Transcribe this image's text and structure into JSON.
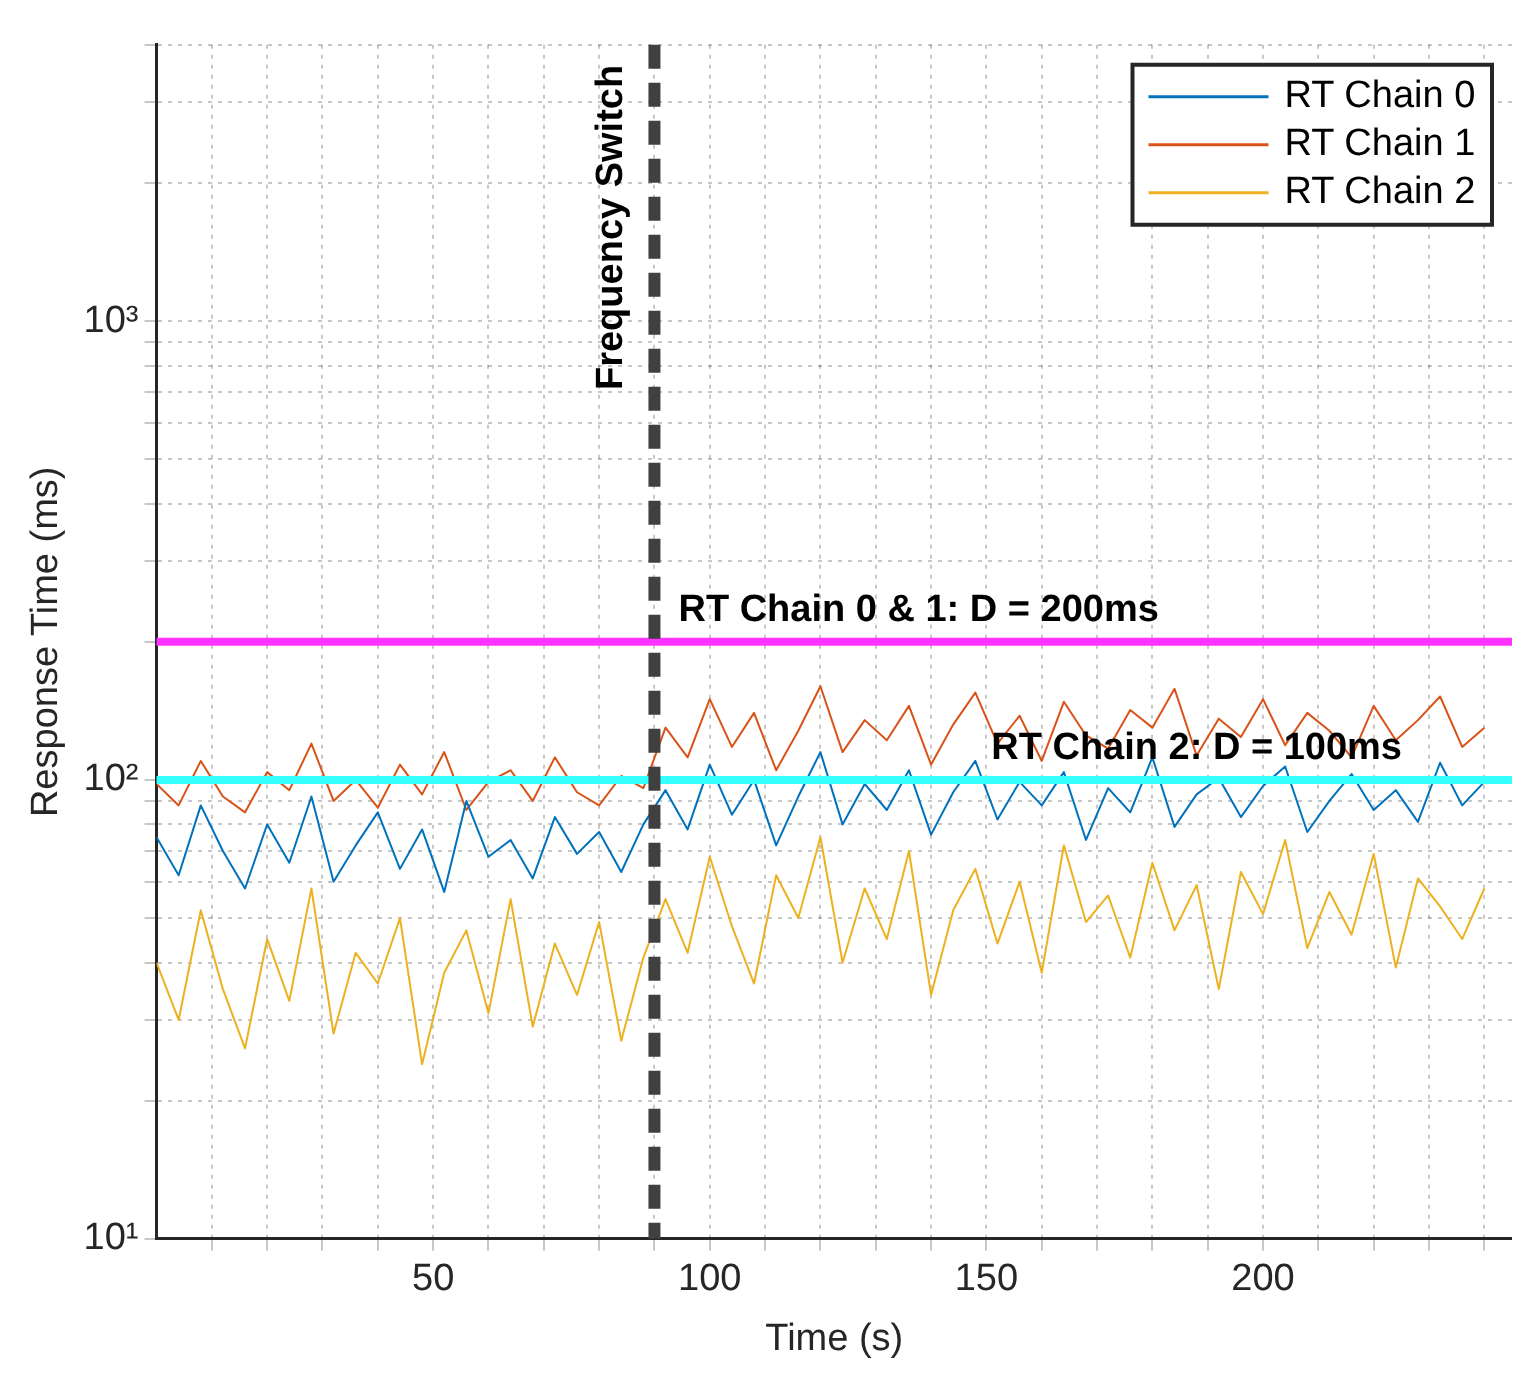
{
  "chart_data": {
    "type": "line",
    "xlabel": "Time (s)",
    "ylabel": "Response Time (ms)",
    "log": "y",
    "grid": true,
    "legend": "top right",
    "line_style": "solid",
    "marker": "none",
    "x": [
      0,
      4,
      8,
      12,
      16,
      20,
      24,
      28,
      32,
      36,
      40,
      44,
      48,
      52,
      56,
      60,
      64,
      68,
      72,
      76,
      80,
      84,
      88,
      92,
      96,
      100,
      104,
      108,
      112,
      116,
      120,
      124,
      128,
      132,
      136,
      140,
      144,
      148,
      152,
      156,
      160,
      164,
      168,
      172,
      176,
      180,
      184,
      188,
      192,
      196,
      200,
      204,
      208,
      212,
      216,
      220,
      224,
      228,
      232,
      236,
      240
    ],
    "series": [
      {
        "name": "RT Chain 0",
        "color": "#0072bd",
        "values": [
          75,
          62,
          88,
          70,
          58,
          80,
          66,
          92,
          60,
          72,
          85,
          64,
          78,
          57,
          90,
          68,
          74,
          61,
          83,
          69,
          77,
          63,
          80,
          95,
          78,
          108,
          84,
          100,
          72,
          92,
          115,
          80,
          98,
          86,
          105,
          76,
          94,
          110,
          82,
          99,
          88,
          104,
          74,
          96,
          85,
          112,
          79,
          93,
          101,
          83,
          97,
          107,
          77,
          90,
          103,
          86,
          95,
          81,
          109,
          88,
          99
        ]
      },
      {
        "name": "RT Chain 1",
        "color": "#d95319",
        "values": [
          98,
          88,
          110,
          92,
          85,
          104,
          95,
          120,
          90,
          100,
          87,
          108,
          93,
          115,
          86,
          99,
          105,
          90,
          112,
          94,
          88,
          102,
          96,
          130,
          112,
          150,
          118,
          140,
          105,
          128,
          160,
          115,
          135,
          122,
          145,
          108,
          132,
          155,
          120,
          138,
          110,
          148,
          125,
          117,
          142,
          130,
          158,
          113,
          136,
          124,
          150,
          119,
          140,
          128,
          112,
          145,
          122,
          135,
          152,
          118,
          130
        ]
      },
      {
        "name": "RT Chain 2",
        "color": "#edb120",
        "values": [
          40,
          30,
          52,
          35,
          26,
          45,
          33,
          58,
          28,
          42,
          36,
          50,
          24,
          38,
          47,
          31,
          55,
          29,
          44,
          34,
          49,
          27,
          41,
          55,
          42,
          68,
          48,
          36,
          62,
          50,
          75,
          40,
          58,
          45,
          70,
          34,
          52,
          64,
          44,
          60,
          38,
          72,
          49,
          56,
          41,
          66,
          47,
          59,
          35,
          63,
          51,
          74,
          43,
          57,
          46,
          69,
          39,
          61,
          53,
          45,
          58
        ]
      }
    ],
    "xlim": [
      0,
      245
    ],
    "xticks": [
      {
        "value": 10,
        "label": null
      },
      {
        "value": 20,
        "label": null
      },
      {
        "value": 30,
        "label": null
      },
      {
        "value": 40,
        "label": null
      },
      50,
      {
        "value": 60,
        "label": null
      },
      {
        "value": 70,
        "label": null
      },
      {
        "value": 80,
        "label": null
      },
      {
        "value": 90,
        "label": null
      },
      100,
      {
        "value": 110,
        "label": null
      },
      {
        "value": 120,
        "label": null
      },
      {
        "value": 130,
        "label": null
      },
      {
        "value": 140,
        "label": null
      },
      150,
      {
        "value": 160,
        "label": null
      },
      {
        "value": 170,
        "label": null
      },
      {
        "value": 180,
        "label": null
      },
      {
        "value": 190,
        "label": null
      },
      200,
      {
        "value": 210,
        "label": null
      },
      {
        "value": 220,
        "label": null
      },
      {
        "value": 230,
        "label": null
      },
      {
        "value": 240,
        "label": null
      }
    ],
    "ylim": [
      10,
      4000
    ],
    "yticks": [
      {
        "value": 10,
        "label": "10¹"
      },
      {
        "value": 20,
        "label": null
      },
      {
        "value": 30,
        "label": null
      },
      {
        "value": 40,
        "label": null
      },
      {
        "value": 50,
        "label": null
      },
      {
        "value": 60,
        "label": null
      },
      {
        "value": 70,
        "label": null
      },
      {
        "value": 80,
        "label": null
      },
      {
        "value": 90,
        "label": null
      },
      {
        "value": 100,
        "label": "10²"
      },
      {
        "value": 200,
        "label": null
      },
      {
        "value": 300,
        "label": null
      },
      {
        "value": 400,
        "label": null
      },
      {
        "value": 500,
        "label": null
      },
      {
        "value": 600,
        "label": null
      },
      {
        "value": 700,
        "label": null
      },
      {
        "value": 800,
        "label": null
      },
      {
        "value": 900,
        "label": null
      },
      {
        "value": 1000,
        "label": "10³"
      },
      {
        "value": 2000,
        "label": null
      },
      {
        "value": 3000,
        "label": null
      },
      {
        "value": 4000,
        "label": null
      }
    ],
    "ref_lines": [
      {
        "axis": "y",
        "value": 200,
        "label": "RT Chain 0 & 1: D = 200ms",
        "color": "#ff33ff",
        "line_style": "solid"
      },
      {
        "axis": "y",
        "value": 100,
        "label": "RT Chain 2: D = 100ms",
        "color": "#33ffff",
        "line_style": "solid"
      },
      {
        "axis": "x",
        "value": 90,
        "label": "Frequency Switch",
        "color": "#404040",
        "line_style": "dashed"
      }
    ]
  }
}
